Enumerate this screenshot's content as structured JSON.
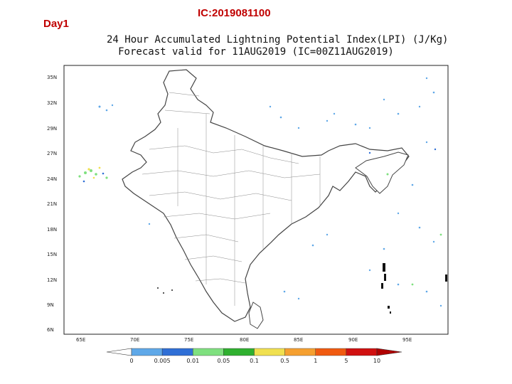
{
  "header": {
    "day_label": "Day1",
    "ic_label": "IC:2019081100"
  },
  "map": {
    "title_line1": "24 Hour Accumulated Lightning Potential Index(LPI) (J/Kg)",
    "title_line2": "Forecast valid for 11AUG2019 (IC=00Z11AUG2019)",
    "lat_ticks": [
      "35N",
      "32N",
      "29N",
      "27N",
      "24N",
      "21N",
      "18N",
      "15N",
      "12N",
      "9N",
      "6N"
    ],
    "lon_ticks": [
      "65E",
      "70E",
      "75E",
      "80E",
      "85E",
      "90E",
      "95E"
    ]
  },
  "colorbar": {
    "labels": [
      "0",
      "0.005",
      "0.01",
      "0.05",
      "0.1",
      "0.5",
      "1",
      "5",
      "10"
    ],
    "colors": [
      "#ffffff",
      "#5fa8e8",
      "#2f6fd6",
      "#7fe07f",
      "#2fb02f",
      "#f0e050",
      "#f5a030",
      "#f05a10",
      "#d01010",
      "#b00000"
    ]
  },
  "colors": {
    "label_red": "#c00000",
    "land": "#ffffff",
    "boundary": "#555555",
    "frame": "#222222"
  }
}
